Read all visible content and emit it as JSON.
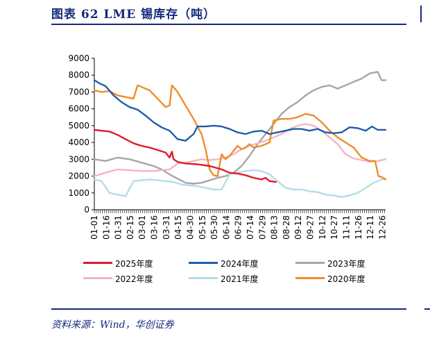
{
  "header": {
    "title": "图表 62   LME 锡库存（吨）",
    "source": "资料来源：Wind，华创证券"
  },
  "chart_data": {
    "type": "line",
    "title": "LME 锡库存（吨）",
    "xlabel": "",
    "ylabel": "",
    "ylim": [
      0,
      9000
    ],
    "yticks": [
      "0",
      "1000",
      "2000",
      "3000",
      "4000",
      "5000",
      "6000",
      "7000",
      "8000",
      "9000"
    ],
    "x_tick_labels": [
      "01-01",
      "01-16",
      "01-31",
      "02-15",
      "03-01",
      "03-16",
      "03-31",
      "04-15",
      "04-30",
      "05-15",
      "05-30",
      "06-14",
      "06-29",
      "07-14",
      "07-29",
      "08-13",
      "08-28",
      "09-12",
      "09-27",
      "10-12",
      "10-27",
      "11-11",
      "11-26",
      "12-11",
      "12-26"
    ],
    "x_unit": "day of year (01-01 = 1, 12-31 = 365)",
    "grid": false,
    "legend_position": "bottom",
    "series": [
      {
        "name": "2025年度",
        "color": "#e0192d",
        "points": [
          [
            1,
            4750
          ],
          [
            10,
            4700
          ],
          [
            20,
            4650
          ],
          [
            30,
            4450
          ],
          [
            40,
            4200
          ],
          [
            50,
            3950
          ],
          [
            60,
            3800
          ],
          [
            70,
            3700
          ],
          [
            80,
            3550
          ],
          [
            90,
            3400
          ],
          [
            95,
            3100
          ],
          [
            98,
            3450
          ],
          [
            100,
            3000
          ],
          [
            105,
            2850
          ],
          [
            115,
            2750
          ],
          [
            130,
            2700
          ],
          [
            145,
            2600
          ],
          [
            160,
            2400
          ],
          [
            170,
            2200
          ],
          [
            180,
            2150
          ],
          [
            190,
            2050
          ],
          [
            200,
            1900
          ],
          [
            210,
            1800
          ],
          [
            215,
            1900
          ],
          [
            220,
            1700
          ],
          [
            228,
            1650
          ]
        ]
      },
      {
        "name": "2024年度",
        "color": "#1f5ea8",
        "points": [
          [
            1,
            7700
          ],
          [
            8,
            7500
          ],
          [
            15,
            7350
          ],
          [
            25,
            6800
          ],
          [
            35,
            6400
          ],
          [
            45,
            6100
          ],
          [
            55,
            5950
          ],
          [
            65,
            5600
          ],
          [
            75,
            5200
          ],
          [
            85,
            4900
          ],
          [
            95,
            4700
          ],
          [
            105,
            4200
          ],
          [
            115,
            4100
          ],
          [
            125,
            4500
          ],
          [
            130,
            4950
          ],
          [
            140,
            4950
          ],
          [
            150,
            5000
          ],
          [
            160,
            4950
          ],
          [
            170,
            4800
          ],
          [
            180,
            4600
          ],
          [
            190,
            4500
          ],
          [
            200,
            4650
          ],
          [
            210,
            4700
          ],
          [
            220,
            4500
          ],
          [
            230,
            4600
          ],
          [
            240,
            4700
          ],
          [
            250,
            4800
          ],
          [
            260,
            4800
          ],
          [
            270,
            4700
          ],
          [
            280,
            4800
          ],
          [
            290,
            4600
          ],
          [
            300,
            4550
          ],
          [
            310,
            4600
          ],
          [
            320,
            4900
          ],
          [
            330,
            4850
          ],
          [
            340,
            4700
          ],
          [
            348,
            4950
          ],
          [
            355,
            4750
          ],
          [
            365,
            4750
          ]
        ]
      },
      {
        "name": "2023年度",
        "color": "#a6a6a6",
        "points": [
          [
            1,
            3000
          ],
          [
            15,
            2900
          ],
          [
            30,
            3100
          ],
          [
            45,
            3000
          ],
          [
            60,
            2800
          ],
          [
            75,
            2600
          ],
          [
            85,
            2400
          ],
          [
            95,
            2100
          ],
          [
            105,
            1850
          ],
          [
            115,
            1600
          ],
          [
            125,
            1550
          ],
          [
            135,
            1600
          ],
          [
            145,
            1750
          ],
          [
            155,
            1900
          ],
          [
            165,
            2000
          ],
          [
            175,
            2200
          ],
          [
            185,
            2600
          ],
          [
            195,
            3200
          ],
          [
            205,
            3900
          ],
          [
            215,
            4500
          ],
          [
            225,
            5100
          ],
          [
            235,
            5700
          ],
          [
            245,
            6100
          ],
          [
            255,
            6400
          ],
          [
            265,
            6800
          ],
          [
            275,
            7100
          ],
          [
            285,
            7300
          ],
          [
            295,
            7400
          ],
          [
            305,
            7200
          ],
          [
            315,
            7400
          ],
          [
            325,
            7600
          ],
          [
            335,
            7800
          ],
          [
            345,
            8100
          ],
          [
            355,
            8200
          ],
          [
            360,
            7700
          ],
          [
            365,
            7700
          ]
        ]
      },
      {
        "name": "2022年度",
        "color": "#f0b6c2",
        "points": [
          [
            1,
            2000
          ],
          [
            15,
            2200
          ],
          [
            30,
            2400
          ],
          [
            45,
            2350
          ],
          [
            60,
            2300
          ],
          [
            75,
            2300
          ],
          [
            85,
            2350
          ],
          [
            95,
            2400
          ],
          [
            105,
            2750
          ],
          [
            115,
            2800
          ],
          [
            125,
            2900
          ],
          [
            135,
            3000
          ],
          [
            145,
            2950
          ],
          [
            155,
            3000
          ],
          [
            165,
            3100
          ],
          [
            175,
            3300
          ],
          [
            185,
            3600
          ],
          [
            195,
            3800
          ],
          [
            205,
            3950
          ],
          [
            215,
            4100
          ],
          [
            225,
            4300
          ],
          [
            235,
            4500
          ],
          [
            245,
            4800
          ],
          [
            255,
            5000
          ],
          [
            265,
            5100
          ],
          [
            275,
            5000
          ],
          [
            285,
            4700
          ],
          [
            295,
            4300
          ],
          [
            305,
            3900
          ],
          [
            315,
            3300
          ],
          [
            325,
            3050
          ],
          [
            335,
            2950
          ],
          [
            345,
            2850
          ],
          [
            355,
            2900
          ],
          [
            365,
            3000
          ]
        ]
      },
      {
        "name": "2021年度",
        "color": "#b3dde6",
        "points": [
          [
            1,
            1800
          ],
          [
            10,
            1700
          ],
          [
            20,
            1000
          ],
          [
            30,
            900
          ],
          [
            40,
            800
          ],
          [
            50,
            1700
          ],
          [
            60,
            1750
          ],
          [
            70,
            1800
          ],
          [
            80,
            1750
          ],
          [
            90,
            1700
          ],
          [
            100,
            1650
          ],
          [
            110,
            1500
          ],
          [
            120,
            1450
          ],
          [
            130,
            1400
          ],
          [
            140,
            1300
          ],
          [
            150,
            1200
          ],
          [
            160,
            1200
          ],
          [
            170,
            2100
          ],
          [
            180,
            2200
          ],
          [
            190,
            2300
          ],
          [
            200,
            2350
          ],
          [
            210,
            2300
          ],
          [
            220,
            2100
          ],
          [
            230,
            1700
          ],
          [
            240,
            1300
          ],
          [
            250,
            1200
          ],
          [
            260,
            1200
          ],
          [
            270,
            1100
          ],
          [
            280,
            1050
          ],
          [
            290,
            900
          ],
          [
            300,
            850
          ],
          [
            310,
            750
          ],
          [
            320,
            850
          ],
          [
            330,
            1000
          ],
          [
            340,
            1300
          ],
          [
            350,
            1600
          ],
          [
            360,
            1800
          ],
          [
            365,
            1850
          ]
        ]
      },
      {
        "name": "2020年度",
        "color": "#f08c28",
        "points": [
          [
            1,
            7100
          ],
          [
            10,
            7000
          ],
          [
            20,
            7050
          ],
          [
            30,
            6800
          ],
          [
            40,
            6700
          ],
          [
            50,
            6600
          ],
          [
            55,
            7400
          ],
          [
            60,
            7300
          ],
          [
            70,
            7100
          ],
          [
            80,
            6600
          ],
          [
            90,
            6100
          ],
          [
            95,
            6200
          ],
          [
            98,
            7400
          ],
          [
            105,
            7000
          ],
          [
            115,
            6200
          ],
          [
            125,
            5400
          ],
          [
            135,
            4500
          ],
          [
            140,
            3600
          ],
          [
            145,
            2400
          ],
          [
            150,
            2050
          ],
          [
            155,
            2000
          ],
          [
            160,
            3300
          ],
          [
            165,
            3000
          ],
          [
            170,
            3200
          ],
          [
            175,
            3500
          ],
          [
            180,
            3800
          ],
          [
            185,
            3600
          ],
          [
            190,
            3700
          ],
          [
            195,
            3900
          ],
          [
            200,
            3700
          ],
          [
            210,
            3800
          ],
          [
            220,
            4000
          ],
          [
            225,
            5300
          ],
          [
            235,
            5400
          ],
          [
            245,
            5400
          ],
          [
            255,
            5500
          ],
          [
            265,
            5700
          ],
          [
            275,
            5600
          ],
          [
            285,
            5200
          ],
          [
            295,
            4700
          ],
          [
            305,
            4300
          ],
          [
            315,
            4000
          ],
          [
            325,
            3700
          ],
          [
            335,
            3100
          ],
          [
            345,
            2900
          ],
          [
            352,
            2900
          ],
          [
            356,
            2000
          ],
          [
            360,
            1950
          ],
          [
            365,
            1800
          ]
        ]
      }
    ]
  }
}
